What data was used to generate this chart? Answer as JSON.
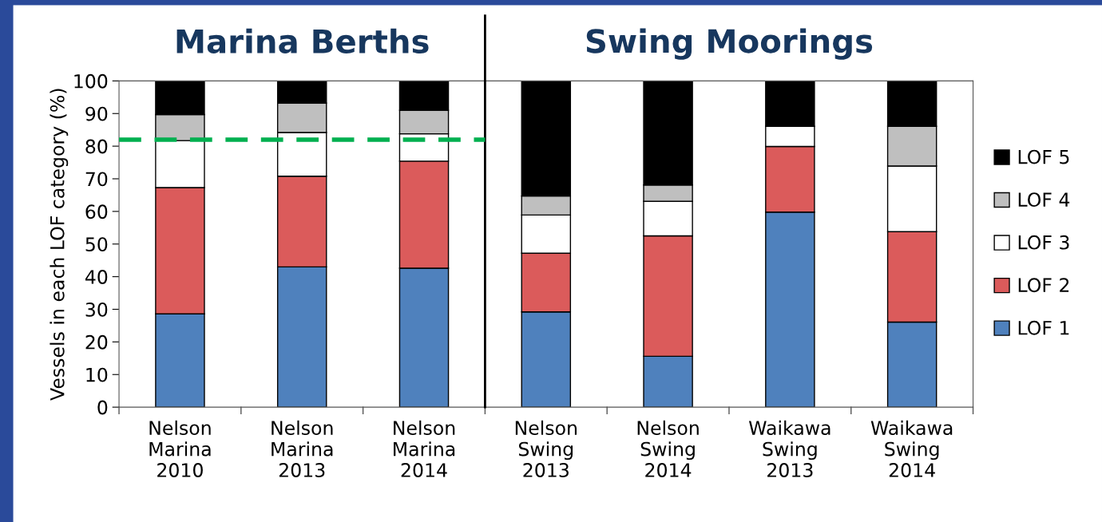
{
  "chart_data": {
    "type": "bar",
    "stacked": true,
    "ylabel": "Vessels in each LOF category (%)",
    "categories": [
      "Nelson\nMarina\n2010",
      "Nelson\nMarina\n2013",
      "Nelson\nMarina\n2014",
      "Nelson\nSwing\n2013",
      "Nelson\nSwing\n2014",
      "Waikawa\nSwing\n2013",
      "Waikawa\nSwing\n2014"
    ],
    "series": [
      {
        "name": "LOF 1",
        "color": "#4f81bd",
        "values": [
          28.6,
          43.0,
          42.6,
          29.2,
          15.6,
          59.8,
          26.1
        ]
      },
      {
        "name": "LOF 2",
        "color": "#db5b5b",
        "values": [
          38.7,
          27.8,
          32.8,
          18.0,
          36.9,
          20.1,
          27.7
        ]
      },
      {
        "name": "LOF 3",
        "color": "#ffffff",
        "values": [
          14.4,
          13.4,
          8.4,
          11.7,
          10.6,
          6.2,
          20.1
        ]
      },
      {
        "name": "LOF 4",
        "color": "#bfbfbf",
        "values": [
          8.0,
          9.0,
          7.2,
          5.8,
          5.0,
          0,
          12.2
        ]
      },
      {
        "name": "LOF 5",
        "color": "#000000",
        "values": [
          10.3,
          6.8,
          9.0,
          35.3,
          31.9,
          13.9,
          13.9
        ]
      }
    ],
    "ylim": [
      0,
      100
    ],
    "yticks": [
      0,
      10,
      20,
      30,
      40,
      50,
      60,
      70,
      80,
      90,
      100
    ],
    "ref_lines": [
      {
        "axis": "y",
        "value": 82,
        "color": "#00b050",
        "line_style": "dashed"
      }
    ],
    "annotations": [
      "Marina Berths",
      "Swing Moorings"
    ],
    "grid": false,
    "legend": "right"
  }
}
